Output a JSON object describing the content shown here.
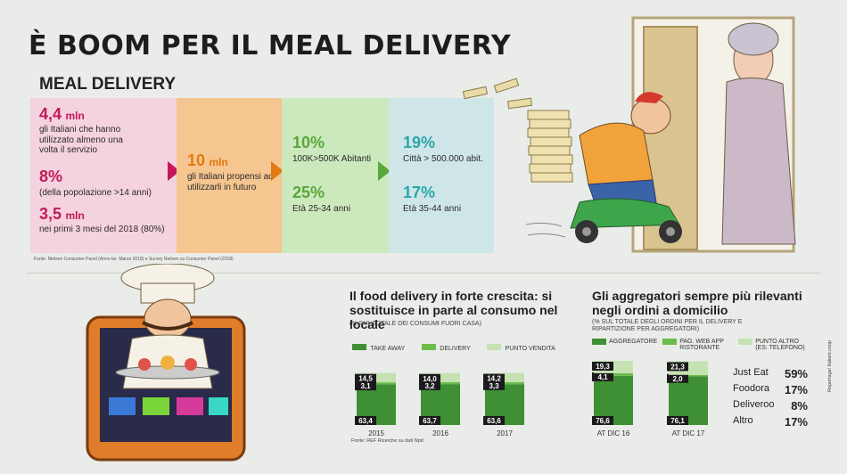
{
  "header": {
    "title": "È BOOM PER IL MEAL DELIVERY",
    "subtitle": "MEAL DELIVERY"
  },
  "panels": {
    "p1": {
      "v1": "4,4",
      "v1_unit": "mln",
      "t1": "gli Italiani che hanno utilizzato almeno una volta il servizio",
      "v2": "8%",
      "t2": "(della popolazione >14 anni)",
      "v3": "3,5",
      "v3_unit": "mln",
      "t3": "nei primi 3 mesi del 2018 (80%)"
    },
    "p2": {
      "v1": "10",
      "v1_unit": "mln",
      "t1": "gli Italiani propensi ad utilizzarli in futuro"
    },
    "p3": {
      "v1": "10%",
      "t1": "100K>500K Abitanti",
      "v2": "25%",
      "t2": "Età 25-34 anni"
    },
    "p4": {
      "v1": "19%",
      "t1": "Città > 500.000 abit.",
      "v2": "17%",
      "t2": "Età 35-44 anni"
    }
  },
  "source_top": "Fonte: Nielsen Consumer Panel (Anno ter. Marzo 2018) e Survey Nielsen su Consumer Panel (2018)",
  "colors": {
    "take_away": "#3f8f34",
    "delivery": "#6dbb4a",
    "punto_vendita": "#c5e3b2",
    "pink": "#c3195c",
    "orange": "#e07a12"
  },
  "chart_data": [
    {
      "type": "bar",
      "title": "Il food delivery in forte crescita: si sostituisce in parte al consumo nel locale",
      "subtitle": "(% SUL TOTALE DEI CONSUMI FUORI CASA)",
      "categories": [
        "2015",
        "2016",
        "2017"
      ],
      "series": [
        {
          "name": "TAKE AWAY",
          "values": [
            63.4,
            63.7,
            63.6
          ]
        },
        {
          "name": "DELIVERY",
          "values": [
            3.1,
            3.2,
            3.3
          ]
        },
        {
          "name": "PUNTO VENDITA",
          "values": [
            14.5,
            14.0,
            14.2
          ]
        }
      ],
      "labels": {
        "take_away": [
          "63,4",
          "63,7",
          "63,6"
        ],
        "delivery": [
          "3,1",
          "3,2",
          "3,3"
        ],
        "punto_vendita": [
          "14,5",
          "14,0",
          "14,2"
        ]
      },
      "source": "Fonte: REF Ricerche su dati Npd"
    },
    {
      "type": "bar",
      "title": "Gli aggregatori sempre più rilevanti negli ordini a domicilio",
      "subtitle": "(% SUL TOTALE DEGLI ORDINI PER IL DELIVERY E RIPARTIZIONE PER AGGREGATORI)",
      "categories": [
        "AT DIC 16",
        "AT DIC 17"
      ],
      "series": [
        {
          "name": "AGGREGATORE",
          "values": [
            76.6,
            76.1
          ]
        },
        {
          "name": "PAG. WEB APP RISTORANTE",
          "values": [
            4.1,
            2.0
          ]
        },
        {
          "name": "PUNTO ALTRO (ES: TELEFONO)",
          "values": [
            19.3,
            21.3
          ]
        }
      ],
      "labels": {
        "aggregatore": [
          "76,6",
          "76,1"
        ],
        "pag_web": [
          "4,1",
          "2,0"
        ],
        "punto_altro": [
          "19,3",
          "21,3"
        ]
      }
    }
  ],
  "aggregatori": [
    {
      "name": "Just Eat",
      "value": "59%"
    },
    {
      "name": "Foodora",
      "value": "17%"
    },
    {
      "name": "Deliveroo",
      "value": "8%"
    },
    {
      "name": "Altro",
      "value": "17%"
    }
  ],
  "credit": "Reportage/ Italiani.coop"
}
